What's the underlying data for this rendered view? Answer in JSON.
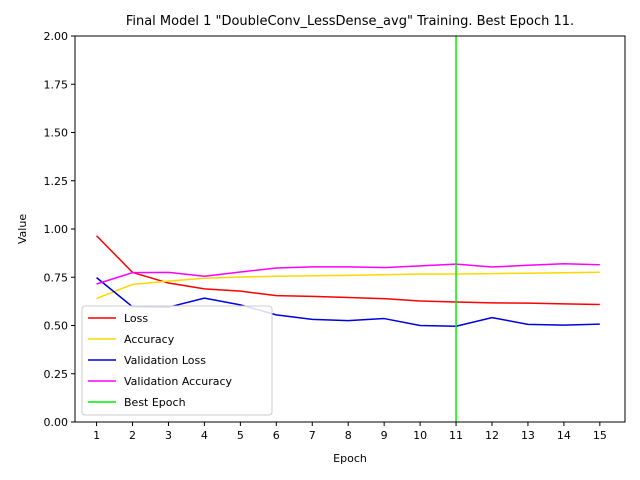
{
  "chart_data": {
    "type": "line",
    "title": "Final Model 1 \"DoubleConv_LessDense_avg\" Training. Best Epoch 11.",
    "xlabel": "Epoch",
    "ylabel": "Value",
    "x": [
      1,
      2,
      3,
      4,
      5,
      6,
      7,
      8,
      9,
      10,
      11,
      12,
      13,
      14,
      15
    ],
    "xlim": [
      0.4,
      15.7
    ],
    "ylim": [
      0,
      2.0
    ],
    "yticks": [
      0.0,
      0.25,
      0.5,
      0.75,
      1.0,
      1.25,
      1.5,
      1.75,
      2.0
    ],
    "ytick_labels": [
      "0.00",
      "0.25",
      "0.50",
      "0.75",
      "1.00",
      "1.25",
      "1.50",
      "1.75",
      "2.00"
    ],
    "grid": false,
    "legend_position": "lower-left",
    "series": [
      {
        "name": "Loss",
        "color": "#ff0000",
        "values": [
          0.965,
          0.775,
          0.72,
          0.69,
          0.678,
          0.655,
          0.651,
          0.645,
          0.639,
          0.627,
          0.622,
          0.617,
          0.616,
          0.612,
          0.609
        ]
      },
      {
        "name": "Accuracy",
        "color": "#ffd700",
        "values": [
          0.64,
          0.713,
          0.73,
          0.745,
          0.751,
          0.755,
          0.758,
          0.76,
          0.763,
          0.767,
          0.767,
          0.769,
          0.771,
          0.773,
          0.776
        ]
      },
      {
        "name": "Validation Loss",
        "color": "#0000dd",
        "values": [
          0.748,
          0.597,
          0.595,
          0.642,
          0.607,
          0.555,
          0.532,
          0.525,
          0.536,
          0.5,
          0.496,
          0.541,
          0.506,
          0.502,
          0.507
        ]
      },
      {
        "name": "Validation  Accuracy",
        "color": "#ff00ff",
        "values": [
          0.715,
          0.774,
          0.775,
          0.755,
          0.777,
          0.798,
          0.804,
          0.804,
          0.8,
          0.809,
          0.818,
          0.803,
          0.812,
          0.82,
          0.815
        ]
      }
    ],
    "vline": {
      "name": "Best Epoch",
      "x": 11,
      "color": "#00ee00"
    }
  }
}
